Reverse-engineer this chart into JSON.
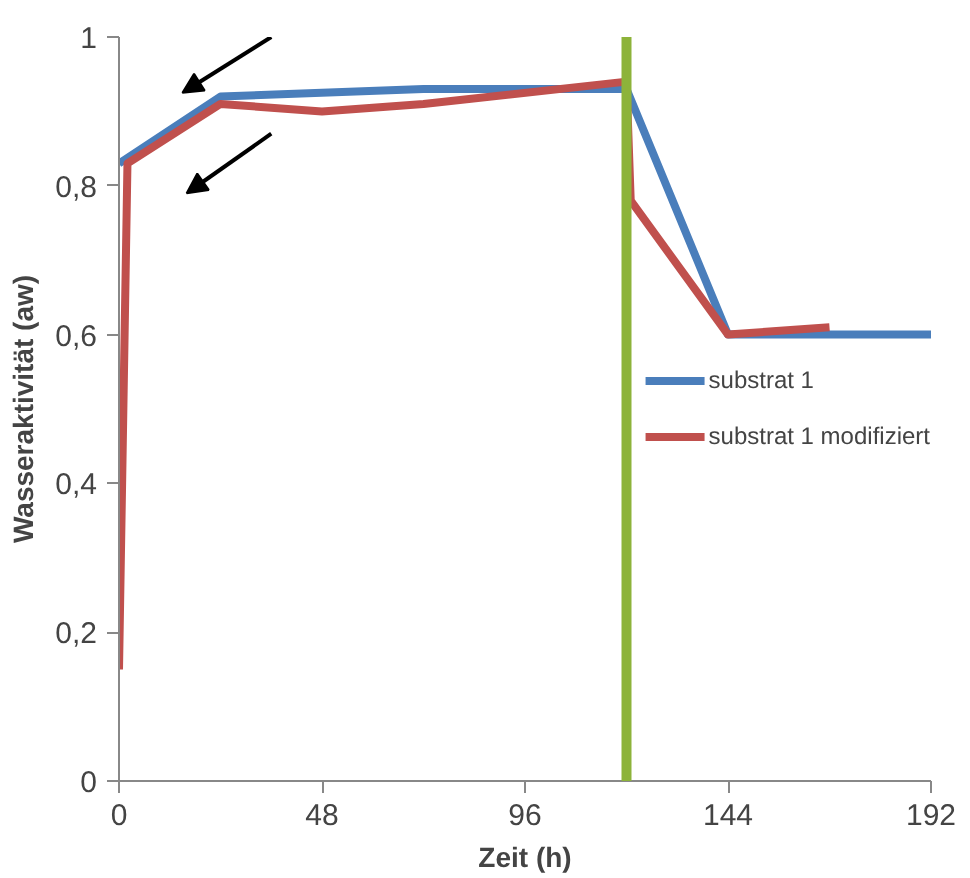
{
  "chart_data": {
    "type": "line",
    "xlabel": "Zeit (h)",
    "ylabel": "Wasseraktivität (aw)",
    "xlim": [
      0,
      192
    ],
    "xticks": [
      0,
      48,
      96,
      144,
      192
    ],
    "ylim": [
      0,
      1
    ],
    "yticks": [
      0,
      {
        "value": 0.2,
        "label": "0,2"
      },
      {
        "value": 0.4,
        "label": "0,4"
      },
      {
        "value": 0.6,
        "label": "0,6"
      },
      {
        "value": 0.8,
        "label": "0,8"
      },
      1
    ],
    "grid": false,
    "legend": "right",
    "marker": "none",
    "line_style": "solid",
    "ref_lines": [
      {
        "axis": "x",
        "value": 120,
        "color": "#8db33a"
      }
    ],
    "series": [
      {
        "name": "substrat 1",
        "color": "#4a7ebb",
        "x": [
          0,
          24,
          72,
          120,
          144,
          192
        ],
        "values": [
          0.83,
          0.92,
          0.93,
          0.93,
          0.6,
          0.6
        ]
      },
      {
        "name": "substrat 1 modifiziert",
        "color": "#c0504d",
        "x": [
          0,
          2,
          24,
          48,
          72,
          120,
          121,
          144,
          168
        ],
        "values": [
          0.15,
          0.83,
          0.91,
          0.9,
          0.91,
          0.94,
          0.78,
          0.6,
          0.61
        ]
      }
    ]
  }
}
